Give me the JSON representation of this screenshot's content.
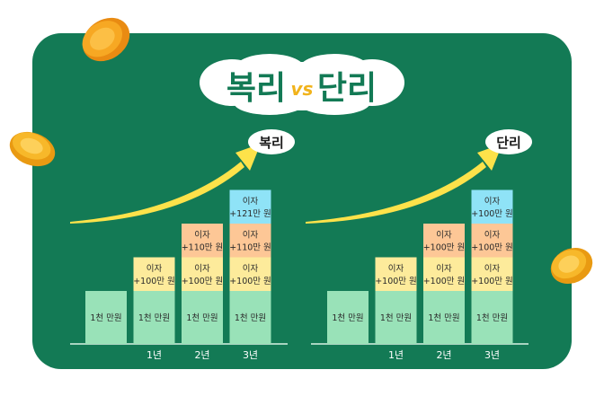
{
  "title": {
    "left": "복리",
    "vs": "vs",
    "right": "단리"
  },
  "colors": {
    "background_green": "#137a55",
    "arrow_yellow": "#fde24a",
    "principal": "#99e2b8",
    "interest_year1": "#fdeb9b",
    "interest_year2": "#fdc796",
    "interest_year3": "#8fe3f7",
    "axis_line": "#d9f1e4",
    "coin": "#f7a823"
  },
  "chart_data": [
    {
      "type": "bar",
      "stacked": true,
      "title": "복리",
      "categories": [
        "",
        "1년",
        "2년",
        "3년"
      ],
      "series": [
        {
          "segments": [
            {
              "label": "1천 만원",
              "value": 1000
            }
          ]
        },
        {
          "segments": [
            {
              "label": "1천 만원",
              "value": 1000
            },
            {
              "label": "이자\n+100만 원",
              "value": 100
            }
          ]
        },
        {
          "segments": [
            {
              "label": "1천 만원",
              "value": 1000
            },
            {
              "label": "이자\n+100만 원",
              "value": 100
            },
            {
              "label": "이자\n+110만 원",
              "value": 110
            }
          ]
        },
        {
          "segments": [
            {
              "label": "1천 만원",
              "value": 1000
            },
            {
              "label": "이자\n+100만 원",
              "value": 100
            },
            {
              "label": "이자\n+110만 원",
              "value": 110
            },
            {
              "label": "이자\n+121만 원",
              "value": 121
            }
          ]
        }
      ],
      "unit": "만원",
      "grid": false
    },
    {
      "type": "bar",
      "stacked": true,
      "title": "단리",
      "categories": [
        "",
        "1년",
        "2년",
        "3년"
      ],
      "series": [
        {
          "segments": [
            {
              "label": "1천 만원",
              "value": 1000
            }
          ]
        },
        {
          "segments": [
            {
              "label": "1천 만원",
              "value": 1000
            },
            {
              "label": "이자\n+100만 원",
              "value": 100
            }
          ]
        },
        {
          "segments": [
            {
              "label": "1천 만원",
              "value": 1000
            },
            {
              "label": "이자\n+100만 원",
              "value": 100
            },
            {
              "label": "이자\n+100만 원",
              "value": 100
            }
          ]
        },
        {
          "segments": [
            {
              "label": "1천 만원",
              "value": 1000
            },
            {
              "label": "이자\n+100만 원",
              "value": 100
            },
            {
              "label": "이자\n+100만 원",
              "value": 100
            },
            {
              "label": "이자\n+100만 원",
              "value": 100
            }
          ]
        }
      ],
      "unit": "만원",
      "grid": false
    }
  ]
}
